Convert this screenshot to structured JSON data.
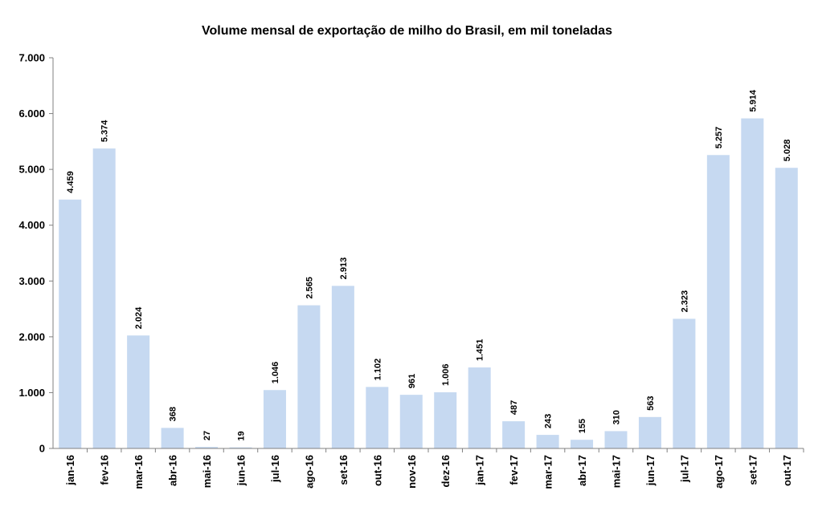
{
  "chart_data": {
    "type": "bar",
    "title": "Volume mensal de exportação de milho do Brasil, em mil toneladas",
    "xlabel": "",
    "ylabel": "",
    "ylim": [
      0,
      7000
    ],
    "y_ticks": [
      "0",
      "1.000",
      "2.000",
      "3.000",
      "4.000",
      "5.000",
      "6.000",
      "7.000"
    ],
    "grid": false,
    "legend": "none",
    "bar_color": "#c6d9f1",
    "categories": [
      "jan-16",
      "fev-16",
      "mar-16",
      "abr-16",
      "mai-16",
      "jun-16",
      "jul-16",
      "ago-16",
      "set-16",
      "out-16",
      "nov-16",
      "dez-16",
      "jan-17",
      "fev-17",
      "mar-17",
      "abr-17",
      "mai-17",
      "jun-17",
      "jul-17",
      "ago-17",
      "set-17",
      "out-17"
    ],
    "values": [
      4459,
      5374,
      2024,
      368,
      27,
      19,
      1046,
      2565,
      2913,
      1102,
      961,
      1006,
      1451,
      487,
      243,
      155,
      310,
      563,
      2323,
      5257,
      5914,
      5028
    ],
    "value_labels": [
      "4.459",
      "5.374",
      "2.024",
      "368",
      "27",
      "19",
      "1.046",
      "2.565",
      "2.913",
      "1.102",
      "961",
      "1.006",
      "1.451",
      "487",
      "243",
      "155",
      "310",
      "563",
      "2.323",
      "5.257",
      "5.914",
      "5.028"
    ]
  }
}
